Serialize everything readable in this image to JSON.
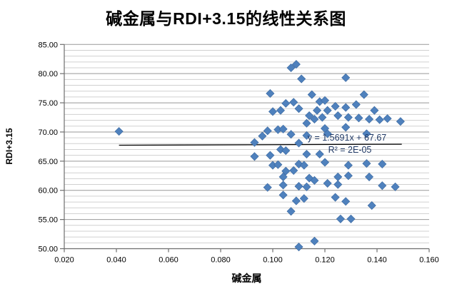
{
  "title": "碱金属与RDI+3.15的线性关系图",
  "chart_data": {
    "type": "scatter",
    "title": "碱金属与RDI+3.15的线性关系图",
    "xlabel": "碱金属",
    "ylabel": "RDI+3.15",
    "xlim": [
      0.02,
      0.16
    ],
    "ylim": [
      50.0,
      85.0
    ],
    "x_tick_values": [
      0.02,
      0.04,
      0.06,
      0.08,
      0.1,
      0.12,
      0.14,
      0.16
    ],
    "x_tick_labels": [
      "0.020",
      "0.040",
      "0.060",
      "0.080",
      "0.100",
      "0.120",
      "0.140",
      "0.160"
    ],
    "y_tick_values": [
      50,
      55,
      60,
      65,
      70,
      75,
      80,
      85
    ],
    "y_tick_labels": [
      "50.00",
      "55.00",
      "60.00",
      "65.00",
      "70.00",
      "75.00",
      "80.00",
      "85.00"
    ],
    "y_minor_step": 1,
    "grid": "horizontal-only",
    "legend": "none",
    "marker": {
      "shape": "diamond",
      "color": "#4F81BD",
      "edge": "#39679E"
    },
    "points": [
      [
        0.041,
        70.1
      ],
      [
        0.107,
        81.0
      ],
      [
        0.109,
        81.6
      ],
      [
        0.111,
        79.1
      ],
      [
        0.128,
        79.3
      ],
      [
        0.099,
        76.6
      ],
      [
        0.115,
        76.4
      ],
      [
        0.135,
        76.4
      ],
      [
        0.105,
        74.9
      ],
      [
        0.108,
        75.1
      ],
      [
        0.118,
        75.2
      ],
      [
        0.12,
        75.4
      ],
      [
        0.11,
        74.0
      ],
      [
        0.124,
        74.4
      ],
      [
        0.128,
        74.2
      ],
      [
        0.132,
        74.7
      ],
      [
        0.1,
        73.5
      ],
      [
        0.103,
        73.7
      ],
      [
        0.117,
        73.7
      ],
      [
        0.121,
        73.7
      ],
      [
        0.139,
        73.7
      ],
      [
        0.114,
        72.8
      ],
      [
        0.116,
        72.2
      ],
      [
        0.119,
        72.5
      ],
      [
        0.125,
        72.8
      ],
      [
        0.129,
        72.5
      ],
      [
        0.133,
        72.4
      ],
      [
        0.137,
        72.2
      ],
      [
        0.141,
        72.1
      ],
      [
        0.144,
        72.3
      ],
      [
        0.149,
        71.8
      ],
      [
        0.113,
        71.5
      ],
      [
        0.098,
        70.2
      ],
      [
        0.102,
        70.4
      ],
      [
        0.104,
        70.5
      ],
      [
        0.12,
        70.6
      ],
      [
        0.128,
        70.8
      ],
      [
        0.096,
        69.3
      ],
      [
        0.107,
        69.6
      ],
      [
        0.113,
        69.4
      ],
      [
        0.121,
        69.7
      ],
      [
        0.136,
        69.7
      ],
      [
        0.093,
        68.2
      ],
      [
        0.11,
        68.1
      ],
      [
        0.103,
        67.0
      ],
      [
        0.105,
        66.8
      ],
      [
        0.113,
        66.2
      ],
      [
        0.118,
        66.2
      ],
      [
        0.093,
        65.8
      ],
      [
        0.099,
        66.0
      ],
      [
        0.1,
        64.3
      ],
      [
        0.102,
        64.4
      ],
      [
        0.11,
        64.5
      ],
      [
        0.112,
        64.3
      ],
      [
        0.12,
        64.8
      ],
      [
        0.129,
        64.3
      ],
      [
        0.136,
        64.6
      ],
      [
        0.142,
        64.5
      ],
      [
        0.105,
        63.3
      ],
      [
        0.108,
        63.4
      ],
      [
        0.104,
        62.3
      ],
      [
        0.114,
        62.1
      ],
      [
        0.125,
        62.3
      ],
      [
        0.129,
        62.5
      ],
      [
        0.137,
        62.3
      ],
      [
        0.116,
        61.7
      ],
      [
        0.121,
        61.2
      ],
      [
        0.125,
        61.0
      ],
      [
        0.098,
        60.5
      ],
      [
        0.104,
        60.9
      ],
      [
        0.11,
        60.7
      ],
      [
        0.113,
        60.6
      ],
      [
        0.142,
        60.8
      ],
      [
        0.147,
        60.6
      ],
      [
        0.104,
        59.2
      ],
      [
        0.109,
        58.2
      ],
      [
        0.112,
        58.6
      ],
      [
        0.124,
        58.8
      ],
      [
        0.128,
        58.1
      ],
      [
        0.107,
        56.4
      ],
      [
        0.138,
        57.4
      ],
      [
        0.126,
        55.1
      ],
      [
        0.13,
        55.1
      ],
      [
        0.116,
        51.3
      ],
      [
        0.11,
        50.3
      ]
    ],
    "trendline": {
      "slope": 1.5691,
      "intercept": 67.67,
      "x_start": 0.041,
      "x_end": 0.1495,
      "color": "#000000",
      "equation_label": "y = 1.5691x  + 67.67",
      "r2_label": "R² = 2E-05"
    },
    "colors": {
      "minor_grid": "#D0D0D0",
      "major_grid": "#999999",
      "axis": "#6E6E6E",
      "annotation": "#1F3864",
      "background": "#FFFFFF"
    }
  }
}
